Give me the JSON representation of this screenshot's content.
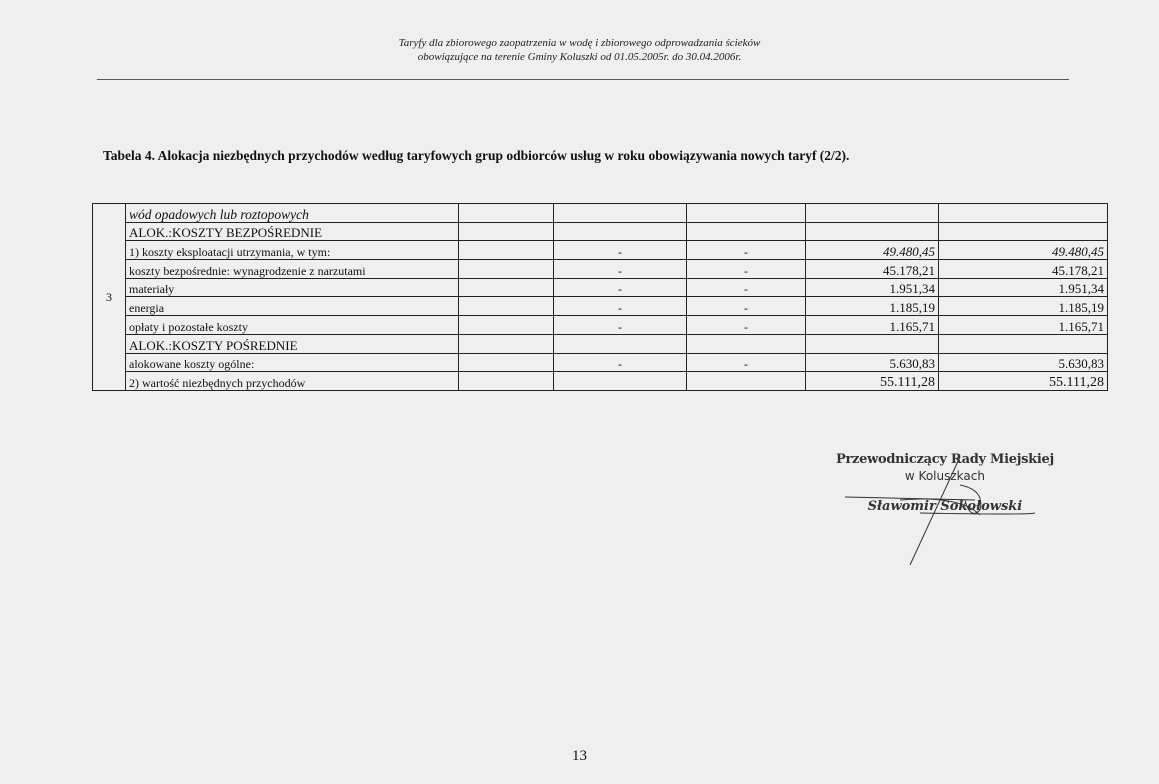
{
  "header": {
    "line1": "Taryfy dla zbiorowego zaopatrzenia w wodę i zbiorowego odprowadzania ścieków",
    "line2": "obowiązujące na terenie Gminy Koluszki od 01.05.2005r. do 30.04.2006r."
  },
  "title": "Tabela 4. Alokacja niezbędnych przychodów według taryfowych grup odbiorców usług w roku obowiązywania nowych taryf (2/2).",
  "table": {
    "group_number": "3",
    "rows": [
      {
        "label": "wód opadowych lub roztopowych",
        "style": "it",
        "c3": "",
        "c4": "",
        "c5": "",
        "c6": ""
      },
      {
        "label": "ALOK.:KOSZTY BEZPOŚREDNIE",
        "style": "caps",
        "c3": "",
        "c4": "",
        "c5": "",
        "c6": ""
      },
      {
        "label": "1) koszty eksploatacji utrzymania, w tym:",
        "style": "",
        "c3": "-",
        "c4": "-",
        "c5": "49.480,45",
        "c6": "49.480,45",
        "italic_nums": true
      },
      {
        "label": "koszty bezpośrednie: wynagrodzenie z narzutami",
        "style": "",
        "c3": "-",
        "c4": "-",
        "c5": "45.178,21",
        "c6": "45.178,21"
      },
      {
        "label": "materiały",
        "style": "",
        "c3": "-",
        "c4": "-",
        "c5": "1.951,34",
        "c6": "1.951,34"
      },
      {
        "label": "energia",
        "style": "",
        "c3": "-",
        "c4": "-",
        "c5": "1.185,19",
        "c6": "1.185,19"
      },
      {
        "label": "opłaty i pozostałe koszty",
        "style": "",
        "c3": "-",
        "c4": "-",
        "c5": "1.165,71",
        "c6": "1.165,71"
      },
      {
        "label": "ALOK.:KOSZTY POŚREDNIE",
        "style": "caps",
        "c3": "",
        "c4": "",
        "c5": "",
        "c6": ""
      },
      {
        "label": "alokowane koszty ogólne:",
        "style": "",
        "c3": "-",
        "c4": "-",
        "c5": "5.630,83",
        "c6": "5.630,83"
      },
      {
        "label": "2) wartość niezbędnych przychodów",
        "style": "",
        "c3": "",
        "c4": "",
        "c5": "55.111,28",
        "c6": "55.111,28",
        "big": true
      }
    ]
  },
  "stamp": {
    "line1": "Przewodniczący Rady Miejskiej",
    "line2": "w Koluszkach",
    "line3": "Sławomir Sokołowski"
  },
  "page_number": "13"
}
